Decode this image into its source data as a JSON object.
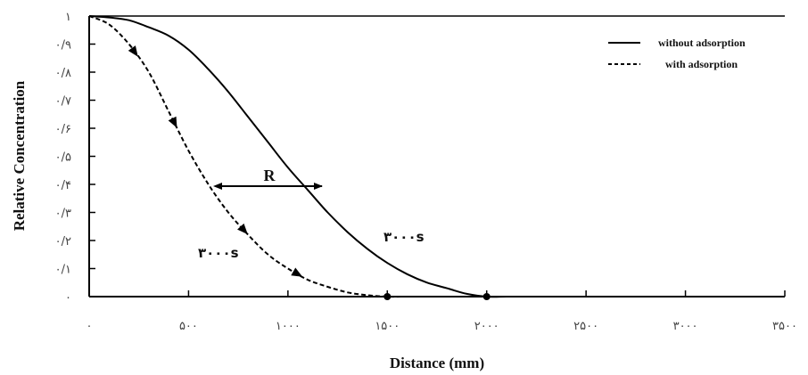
{
  "chart_data": {
    "type": "line",
    "title": "",
    "xlabel": "Distance (mm)",
    "ylabel": "Relative Concentration",
    "xlim": [
      0,
      3500
    ],
    "ylim": [
      0,
      1
    ],
    "x_ticks": [
      0,
      500,
      1000,
      1500,
      2000,
      2500,
      3000,
      3500
    ],
    "x_tick_labels": [
      "۰",
      "۵۰۰",
      "۱۰۰۰",
      "۱۵۰۰",
      "۲۰۰۰",
      "۲۵۰۰",
      "۳۰۰۰",
      "۳۵۰۰"
    ],
    "y_ticks": [
      0,
      0.1,
      0.2,
      0.3,
      0.4,
      0.5,
      0.6,
      0.7,
      0.8,
      0.9,
      1
    ],
    "y_tick_labels": [
      "۰",
      "۰/۱",
      "۰/۲",
      "۰/۳",
      "۰/۴",
      "۰/۵",
      "۰/۶",
      "۰/۷",
      "۰/۸",
      "۰/۹",
      "۱"
    ],
    "grid": false,
    "legend_position": "top-right",
    "series": [
      {
        "name": "without adsorption",
        "style": "solid",
        "x": [
          0,
          100,
          200,
          300,
          400,
          500,
          600,
          700,
          800,
          900,
          1000,
          1100,
          1200,
          1300,
          1400,
          1500,
          1600,
          1700,
          1800,
          1900,
          2000,
          2100,
          2200,
          2500,
          3000,
          3500
        ],
        "y": [
          1.0,
          0.995,
          0.985,
          0.96,
          0.93,
          0.88,
          0.81,
          0.73,
          0.64,
          0.55,
          0.46,
          0.38,
          0.3,
          0.23,
          0.17,
          0.12,
          0.08,
          0.05,
          0.03,
          0.01,
          0.0,
          0.0,
          0.0,
          0.0,
          0.0,
          0.0
        ]
      },
      {
        "name": "with adsorption",
        "style": "dashed",
        "x": [
          0,
          100,
          200,
          300,
          400,
          500,
          600,
          700,
          800,
          900,
          1000,
          1100,
          1200,
          1300,
          1400,
          1500,
          1600,
          1800,
          2000,
          2500,
          3000,
          3500
        ],
        "y": [
          1.0,
          0.97,
          0.9,
          0.8,
          0.66,
          0.52,
          0.4,
          0.3,
          0.22,
          0.15,
          0.1,
          0.06,
          0.035,
          0.015,
          0.005,
          0.0,
          0.0,
          0.0,
          0.0,
          0.0,
          0.0,
          0.0
        ]
      }
    ],
    "annotations": {
      "time_label_solid": "۳۰۰۰s",
      "time_label_dashed": "۳۰۰۰s",
      "retardation_label": "R"
    },
    "colors": {
      "line": "#000000",
      "axis": "#000000"
    }
  }
}
